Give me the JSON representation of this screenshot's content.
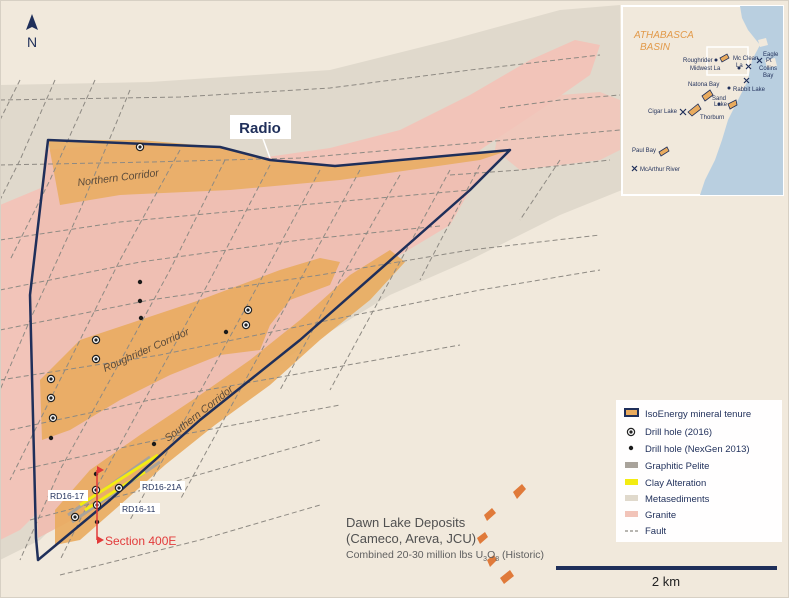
{
  "north": {
    "label": "N"
  },
  "property": {
    "name": "Radio"
  },
  "corridors": [
    {
      "label": "Northern Corridor"
    },
    {
      "label": "Roughrider Corridor"
    },
    {
      "label": "Southern Corridor"
    }
  ],
  "drill_holes": [
    {
      "label": "RD16-17"
    },
    {
      "label": "RD16-21A"
    },
    {
      "label": "RD16-11"
    }
  ],
  "section": {
    "label": "Section 400E"
  },
  "deposits": {
    "line1": "Dawn Lake Deposits",
    "line2": "(Cameco, Areva, JCU)",
    "line3_prefix": "Combined 20-30 million lbs U",
    "line3_sub1": "3",
    "line3_mid": "O",
    "line3_sub2": "8",
    "line3_suffix": " (Historic)"
  },
  "scale_bar": {
    "label": "2 km"
  },
  "legend": {
    "items": [
      {
        "label": "IsoEnergy mineral tenure"
      },
      {
        "label": "Drill hole (2016)"
      },
      {
        "label": "Drill hole (NexGen 2013)"
      },
      {
        "label": "Graphitic Pelite"
      },
      {
        "label": "Clay Alteration"
      },
      {
        "label": "Metasediments"
      },
      {
        "label": "Granite"
      },
      {
        "label": "Fault"
      }
    ]
  },
  "inset": {
    "basin_line1": "ATHABASCA",
    "basin_line2": "BASIN",
    "places": [
      {
        "label": "Roughrider"
      },
      {
        "label": "Mc Clean"
      },
      {
        "label": "La"
      },
      {
        "label": "Eagle"
      },
      {
        "label": "Pt"
      },
      {
        "label": "Midwest La"
      },
      {
        "label": "Collins"
      },
      {
        "label": "Bay"
      },
      {
        "label": "Natona Bay"
      },
      {
        "label": "Rabbit Lake"
      },
      {
        "label": "Sand"
      },
      {
        "label": "Lake"
      },
      {
        "label": "Cigar Lake"
      },
      {
        "label": "Thorburn"
      },
      {
        "label": "Paul Bay"
      },
      {
        "label": "McArthur River"
      }
    ]
  },
  "colors": {
    "background": "#f1e9dc",
    "metasediments": "#e0d9cc",
    "granite": "#f2c4b9",
    "alteration": "#e9ab5e",
    "tenure_outline": "#1f2f5a",
    "fault": "#8e8a83",
    "graphitic_pelite": "#a9a39b",
    "clay": "#f3ec12",
    "section_red": "#e23a3a",
    "lake_water": "#b9cfe0"
  }
}
